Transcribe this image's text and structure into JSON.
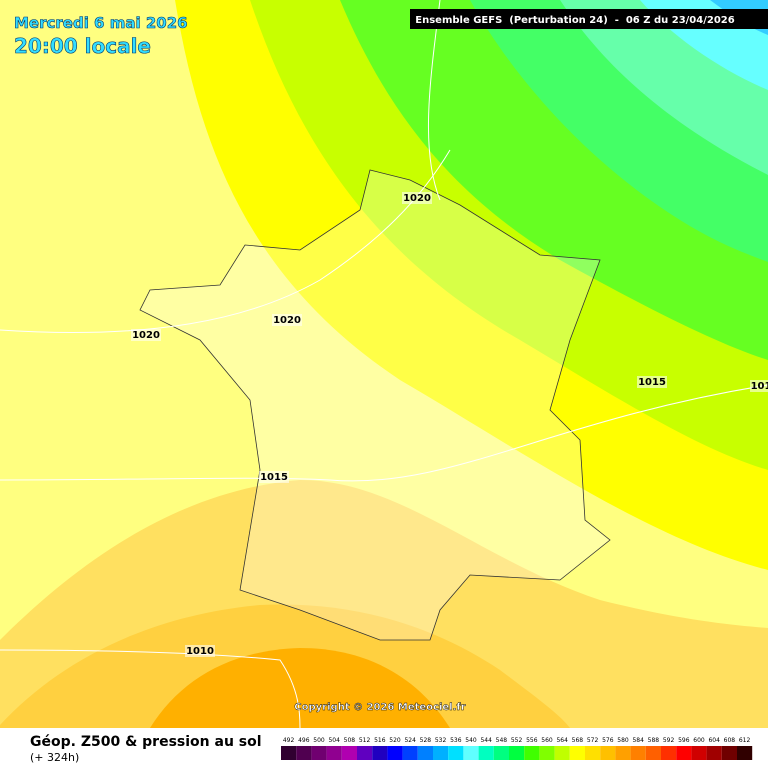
{
  "header": {
    "date": "Mercredi 6 mai 2026",
    "time": "20:00 locale",
    "model": "Ensemble GEFS  (Perturbation 24)  -  06 Z du 23/04/2026"
  },
  "isobar_labels": [
    "1020",
    "1020",
    "1020",
    "1015",
    "1015",
    "101",
    "1010"
  ],
  "copyright": "Copyright © 2026 Meteociel.fr",
  "legend": {
    "title": "Géop. Z500 & pression au sol",
    "subtitle": "(+ 324h)",
    "scale": [
      {
        "label": "492",
        "color": "#300030"
      },
      {
        "label": "496",
        "color": "#500050"
      },
      {
        "label": "500",
        "color": "#700070"
      },
      {
        "label": "504",
        "color": "#900090"
      },
      {
        "label": "508",
        "color": "#b000b0"
      },
      {
        "label": "512",
        "color": "#6000c0"
      },
      {
        "label": "516",
        "color": "#2000c0"
      },
      {
        "label": "520",
        "color": "#0000ff"
      },
      {
        "label": "524",
        "color": "#0040ff"
      },
      {
        "label": "528",
        "color": "#0080ff"
      },
      {
        "label": "532",
        "color": "#00b0ff"
      },
      {
        "label": "536",
        "color": "#00e0ff"
      },
      {
        "label": "540",
        "color": "#60ffff"
      },
      {
        "label": "544",
        "color": "#00ffc0"
      },
      {
        "label": "548",
        "color": "#00ff80"
      },
      {
        "label": "552",
        "color": "#00ff40"
      },
      {
        "label": "556",
        "color": "#40ff00"
      },
      {
        "label": "560",
        "color": "#80ff00"
      },
      {
        "label": "564",
        "color": "#c0ff00"
      },
      {
        "label": "568",
        "color": "#ffff00"
      },
      {
        "label": "572",
        "color": "#ffe000"
      },
      {
        "label": "576",
        "color": "#ffc000"
      },
      {
        "label": "580",
        "color": "#ffa000"
      },
      {
        "label": "584",
        "color": "#ff8000"
      },
      {
        "label": "588",
        "color": "#ff6000"
      },
      {
        "label": "592",
        "color": "#ff3000"
      },
      {
        "label": "596",
        "color": "#ff0000"
      },
      {
        "label": "600",
        "color": "#d00000"
      },
      {
        "label": "604",
        "color": "#a00000"
      },
      {
        "label": "608",
        "color": "#700000"
      },
      {
        "label": "612",
        "color": "#300000"
      }
    ]
  }
}
